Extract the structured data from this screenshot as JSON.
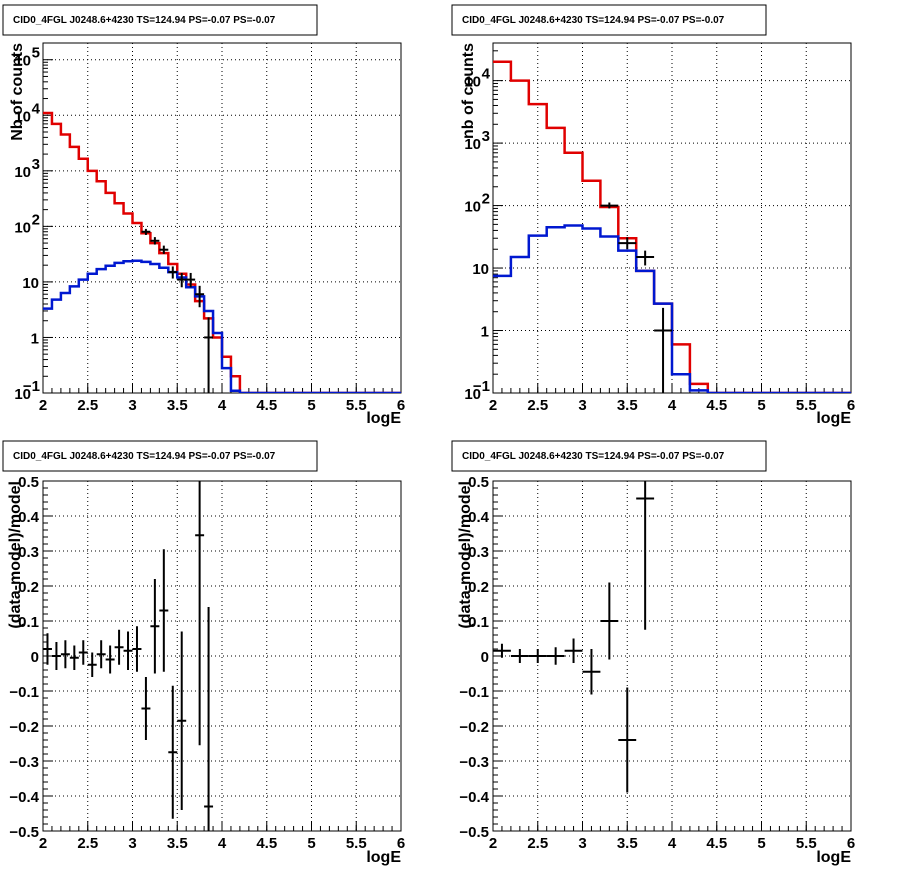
{
  "colors": {
    "data": "#000000",
    "total_model": "#e00000",
    "source_model": "#0018d0",
    "grid": "#000000"
  },
  "chart_data": [
    {
      "type": "line",
      "panel": "top-left",
      "title": "CID0_4FGL J0248.6+4230 TS=124.94 PS=-0.07 PS=-0.07",
      "xlabel": "logE",
      "ylabel": "Nb of counts",
      "xlim": [
        2,
        6
      ],
      "ylim": [
        0.1,
        200000
      ],
      "yscale": "log",
      "grid": true,
      "xticks": [
        "2",
        "2.5",
        "3",
        "3.5",
        "4",
        "4.5",
        "5",
        "5.5",
        "6"
      ],
      "yticks": [
        {
          "v": 0.1,
          "label": "10",
          "exp": "−1"
        },
        {
          "v": 1,
          "label": "1",
          "exp": ""
        },
        {
          "v": 10,
          "label": "10",
          "exp": ""
        },
        {
          "v": 100,
          "label": "10",
          "exp": "2"
        },
        {
          "v": 1000,
          "label": "10",
          "exp": "3"
        },
        {
          "v": 10000,
          "label": "10",
          "exp": "4"
        },
        {
          "v": 100000,
          "label": "10",
          "exp": "5"
        }
      ],
      "bin_edges": [
        2.0,
        2.1,
        2.2,
        2.3,
        2.4,
        2.5,
        2.6,
        2.7,
        2.8,
        2.9,
        3.0,
        3.1,
        3.2,
        3.3,
        3.4,
        3.5,
        3.6,
        3.7,
        3.8,
        3.9,
        4.0,
        4.1,
        4.2,
        4.3,
        4.4,
        4.5,
        4.6,
        4.7,
        4.8,
        4.9,
        5.0,
        5.1,
        5.2,
        5.3,
        5.4,
        5.5,
        5.6,
        5.7,
        5.8,
        5.9,
        6.0
      ],
      "series": [
        {
          "role": "total_model",
          "values": [
            11000,
            7000,
            4500,
            2700,
            1650,
            1000,
            650,
            400,
            260,
            170,
            115,
            75,
            50,
            33,
            21,
            14,
            9,
            4.5,
            2.2,
            1.0,
            0.45,
            0.2,
            0.08,
            0.05,
            0.05,
            0.05,
            0.05,
            0.05,
            0.05,
            0.05,
            0.05,
            0.05,
            0.05,
            0.05,
            0.05,
            0.05,
            0.05,
            0.05,
            0.05,
            0.05
          ]
        },
        {
          "role": "source_model",
          "values": [
            3.3,
            4.8,
            6.3,
            8.3,
            11,
            14,
            17,
            19.5,
            22,
            23.5,
            24,
            23,
            21,
            18,
            15,
            12,
            8,
            5.5,
            3.0,
            1.2,
            0.28,
            0.11,
            0.1,
            0.1,
            0.1,
            0.1,
            0.1,
            0.1,
            0.1,
            0.1,
            0.1,
            0.1,
            0.1,
            0.1,
            0.1,
            0.1,
            0.1,
            0.1,
            0.1,
            0.1
          ]
        },
        {
          "role": "data",
          "points": [
            {
              "x": 3.15,
              "y": 80,
              "lo": 70,
              "hi": 90
            },
            {
              "x": 3.25,
              "y": 55,
              "lo": 47,
              "hi": 64
            },
            {
              "x": 3.35,
              "y": 38,
              "lo": 32,
              "hi": 45
            },
            {
              "x": 3.45,
              "y": 15,
              "lo": 11.5,
              "hi": 19
            },
            {
              "x": 3.55,
              "y": 11,
              "lo": 8,
              "hi": 14.5
            },
            {
              "x": 3.65,
              "y": 11,
              "lo": 8,
              "hi": 14.5
            },
            {
              "x": 3.75,
              "y": 6,
              "lo": 3.5,
              "hi": 8.5
            },
            {
              "x": 3.85,
              "y": 1,
              "lo": 0.05,
              "hi": 2.3
            }
          ]
        }
      ]
    },
    {
      "type": "line",
      "panel": "top-right",
      "title": "CID0_4FGL J0248.6+4230 TS=124.94 PS=-0.07 PS=-0.07",
      "xlabel": "logE",
      "ylabel": "nb of counts",
      "xlim": [
        2,
        6
      ],
      "ylim": [
        0.1,
        40000
      ],
      "yscale": "log",
      "grid": true,
      "xticks": [
        "2",
        "2.5",
        "3",
        "3.5",
        "4",
        "4.5",
        "5",
        "5.5",
        "6"
      ],
      "yticks": [
        {
          "v": 0.1,
          "label": "10",
          "exp": "−1"
        },
        {
          "v": 1,
          "label": "1",
          "exp": ""
        },
        {
          "v": 10,
          "label": "10",
          "exp": ""
        },
        {
          "v": 100,
          "label": "10",
          "exp": "2"
        },
        {
          "v": 1000,
          "label": "10",
          "exp": "3"
        },
        {
          "v": 10000,
          "label": "10",
          "exp": "4"
        }
      ],
      "bin_edges": [
        2.0,
        2.2,
        2.4,
        2.6,
        2.8,
        3.0,
        3.2,
        3.4,
        3.6,
        3.8,
        4.0,
        4.2,
        4.4,
        4.6,
        4.8,
        5.0,
        5.2,
        5.4,
        5.6,
        5.8,
        6.0
      ],
      "series": [
        {
          "role": "total_model",
          "values": [
            20000,
            10000,
            4200,
            1750,
            700,
            250,
            95,
            30,
            9,
            2.7,
            0.6,
            0.14,
            0.07,
            0.07,
            0.07,
            0.07,
            0.07,
            0.07,
            0.07,
            0.07
          ]
        },
        {
          "role": "source_model",
          "values": [
            7.5,
            15,
            33,
            45,
            48,
            43,
            32,
            19,
            9,
            2.7,
            0.2,
            0.11,
            0.1,
            0.1,
            0.1,
            0.1,
            0.1,
            0.1,
            0.1,
            0.1
          ]
        },
        {
          "role": "data",
          "points": [
            {
              "x": 3.3,
              "y": 100,
              "lo": 90,
              "hi": 112
            },
            {
              "x": 3.5,
              "y": 25,
              "lo": 20,
              "hi": 31
            },
            {
              "x": 3.7,
              "y": 15,
              "lo": 11,
              "hi": 19
            },
            {
              "x": 3.9,
              "y": 1,
              "lo": 0.05,
              "hi": 2.3
            }
          ]
        }
      ]
    },
    {
      "type": "scatter",
      "panel": "bottom-left",
      "title": "CID0_4FGL J0248.6+4230 TS=124.94 PS=-0.07 PS=-0.07",
      "xlabel": "logE",
      "ylabel": "(data-model)/model",
      "xlim": [
        2,
        6
      ],
      "ylim": [
        -0.5,
        0.5
      ],
      "grid": true,
      "xticks": [
        "2",
        "2.5",
        "3",
        "3.5",
        "4",
        "4.5",
        "5",
        "5.5",
        "6"
      ],
      "yticks": [
        "−0.5",
        "−0.4",
        "−0.3",
        "−0.2",
        "−0.1",
        "0",
        "0.1",
        "0.2",
        "0.3",
        "0.4",
        "0.5"
      ],
      "xerr": 0.05,
      "points": [
        {
          "x": 2.05,
          "y": 0.02,
          "err": 0.045
        },
        {
          "x": 2.15,
          "y": 0.0,
          "err": 0.04
        },
        {
          "x": 2.25,
          "y": 0.005,
          "err": 0.04
        },
        {
          "x": 2.35,
          "y": -0.005,
          "err": 0.035
        },
        {
          "x": 2.45,
          "y": 0.01,
          "err": 0.035
        },
        {
          "x": 2.55,
          "y": -0.025,
          "err": 0.035
        },
        {
          "x": 2.65,
          "y": 0.005,
          "err": 0.04
        },
        {
          "x": 2.75,
          "y": -0.01,
          "err": 0.04
        },
        {
          "x": 2.85,
          "y": 0.025,
          "err": 0.05
        },
        {
          "x": 2.95,
          "y": 0.015,
          "err": 0.055
        },
        {
          "x": 3.05,
          "y": 0.02,
          "err": 0.065
        },
        {
          "x": 3.15,
          "y": -0.15,
          "err": 0.09
        },
        {
          "x": 3.25,
          "y": 0.085,
          "err": 0.135
        },
        {
          "x": 3.35,
          "y": 0.13,
          "err": 0.175
        },
        {
          "x": 3.45,
          "y": -0.275,
          "err": 0.19
        },
        {
          "x": 3.55,
          "y": -0.185,
          "err": 0.255
        },
        {
          "x": 3.75,
          "y": 0.345,
          "err": 0.6
        },
        {
          "x": 3.85,
          "y": -0.43,
          "err": 0.57
        }
      ]
    },
    {
      "type": "scatter",
      "panel": "bottom-right",
      "title": "CID0_4FGL J0248.6+4230 TS=124.94 PS=-0.07 PS=-0.07",
      "xlabel": "logE",
      "ylabel": "(data-model)/model",
      "xlim": [
        2,
        6
      ],
      "ylim": [
        -0.5,
        0.5
      ],
      "grid": true,
      "xticks": [
        "2",
        "2.5",
        "3",
        "3.5",
        "4",
        "4.5",
        "5",
        "5.5",
        "6"
      ],
      "yticks": [
        "−0.5",
        "−0.4",
        "−0.3",
        "−0.2",
        "−0.1",
        "0",
        "0.1",
        "0.2",
        "0.3",
        "0.4",
        "0.5"
      ],
      "xerr": 0.1,
      "points": [
        {
          "x": 2.1,
          "y": 0.015,
          "err": 0.02
        },
        {
          "x": 2.3,
          "y": 0.0,
          "err": 0.02
        },
        {
          "x": 2.5,
          "y": 0.0,
          "err": 0.02
        },
        {
          "x": 2.7,
          "y": 0.0,
          "err": 0.025
        },
        {
          "x": 2.9,
          "y": 0.015,
          "err": 0.035
        },
        {
          "x": 3.1,
          "y": -0.045,
          "err": 0.065
        },
        {
          "x": 3.3,
          "y": 0.1,
          "err": 0.11
        },
        {
          "x": 3.5,
          "y": -0.24,
          "err": 0.15
        },
        {
          "x": 3.7,
          "y": 0.45,
          "err": 0.375
        }
      ]
    }
  ]
}
